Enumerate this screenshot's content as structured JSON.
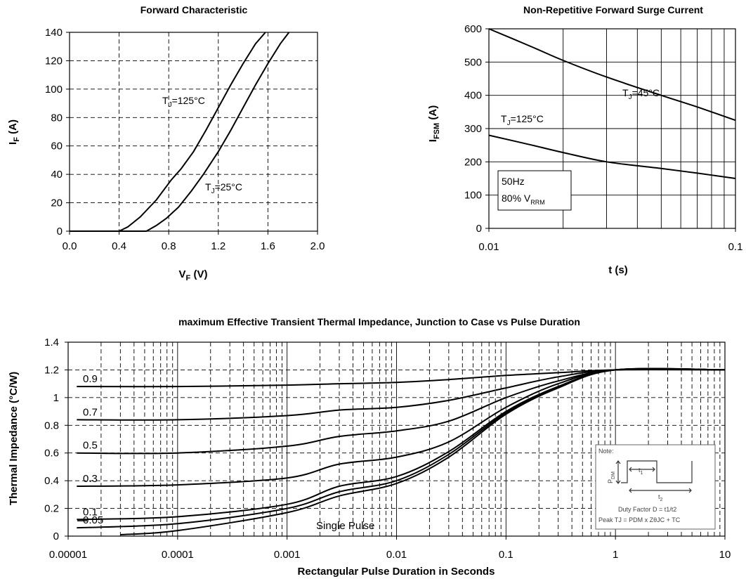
{
  "chart_data": [
    {
      "type": "line",
      "title": "Forward Characteristic",
      "xlabel": "V",
      "xlabel_sub": "F",
      "xlabel_unit": " (V)",
      "ylabel": "I",
      "ylabel_sub": "F",
      "ylabel_unit": " (A)",
      "xlim": [
        0,
        2.0
      ],
      "ylim": [
        0,
        140
      ],
      "xticks": [
        "0.0",
        "0.4",
        "0.8",
        "1.2",
        "1.6",
        "2.0"
      ],
      "yticks": [
        "0",
        "20",
        "40",
        "60",
        "80",
        "100",
        "120",
        "140"
      ],
      "grid": true,
      "series": [
        {
          "name_pre": "T",
          "name_sub": "J",
          "name_post": "=125°C",
          "x": [
            0.0,
            0.4,
            0.47,
            0.57,
            0.7,
            0.82,
            0.9,
            1.0,
            1.1,
            1.2,
            1.3,
            1.4,
            1.5,
            1.58
          ],
          "y": [
            0,
            0,
            3,
            10,
            22,
            36,
            44,
            56,
            71,
            87,
            103,
            118,
            132,
            140
          ]
        },
        {
          "name_pre": "T",
          "name_sub": "J",
          "name_post": "=25°C",
          "x": [
            0.0,
            0.62,
            0.7,
            0.78,
            0.88,
            0.98,
            1.08,
            1.2,
            1.3,
            1.4,
            1.5,
            1.6,
            1.7,
            1.77
          ],
          "y": [
            0,
            0,
            4,
            9,
            17,
            28,
            40,
            56,
            71,
            87,
            103,
            118,
            132,
            140
          ]
        }
      ]
    },
    {
      "type": "line",
      "title": "Non-Repetitive Forward Surge Current",
      "xlabel": "t (s)",
      "ylabel": "I",
      "ylabel_sub": "FSM",
      "ylabel_unit": " (A)",
      "xscale": "log",
      "xlim": [
        0.01,
        0.1
      ],
      "ylim": [
        0,
        600
      ],
      "xticks": [
        "0.01",
        "0.1"
      ],
      "yticks": [
        "0",
        "100",
        "200",
        "300",
        "400",
        "500",
        "600"
      ],
      "grid": true,
      "legend_box": {
        "line1": "50Hz",
        "line2_pre": "80% V",
        "line2_sub": "RRM"
      },
      "series": [
        {
          "name_pre": "T",
          "name_sub": "J",
          "name_post": "=45°C",
          "x": [
            0.01,
            0.015,
            0.02,
            0.03,
            0.05,
            0.07,
            0.1
          ],
          "y": [
            600,
            545,
            505,
            455,
            400,
            365,
            325
          ]
        },
        {
          "name_pre": "T",
          "name_sub": "J",
          "name_post": "=125°C",
          "x": [
            0.01,
            0.015,
            0.02,
            0.03,
            0.05,
            0.07,
            0.1
          ],
          "y": [
            280,
            250,
            228,
            200,
            180,
            166,
            150
          ]
        }
      ]
    },
    {
      "type": "line",
      "title": "maximum Effective Transient Thermal Impedance, Junction to Case vs Pulse Duration",
      "xlabel": "Rectangular Pulse Duration in Seconds",
      "ylabel": "Thermal Impedance (°C/W)",
      "xscale": "log",
      "xlim": [
        1e-05,
        10
      ],
      "ylim": [
        0,
        1.4
      ],
      "xticks": [
        "0.00001",
        "0.0001",
        "0.001",
        "0.01",
        "0.1",
        "1",
        "10"
      ],
      "yticks": [
        "0",
        "0.2",
        "0.4",
        "0.6",
        "0.8",
        "1",
        "1.2",
        "1.4"
      ],
      "grid": true,
      "series": [
        {
          "name": "0.9",
          "x": [
            1.2e-05,
            0.0001,
            0.001,
            0.003,
            0.01,
            0.03,
            0.1,
            0.3,
            1,
            10
          ],
          "y": [
            1.08,
            1.08,
            1.09,
            1.1,
            1.11,
            1.13,
            1.16,
            1.18,
            1.2,
            1.2
          ]
        },
        {
          "name": "0.7",
          "x": [
            1.2e-05,
            0.0001,
            0.001,
            0.003,
            0.01,
            0.03,
            0.1,
            0.3,
            1,
            10
          ],
          "y": [
            0.84,
            0.84,
            0.87,
            0.91,
            0.93,
            0.98,
            1.07,
            1.15,
            1.2,
            1.2
          ]
        },
        {
          "name": "0.5",
          "x": [
            1.2e-05,
            0.0001,
            0.001,
            0.003,
            0.01,
            0.03,
            0.1,
            0.3,
            1,
            10
          ],
          "y": [
            0.6,
            0.6,
            0.65,
            0.72,
            0.76,
            0.83,
            1.0,
            1.12,
            1.2,
            1.2
          ]
        },
        {
          "name": "0.3",
          "x": [
            1.2e-05,
            0.0001,
            0.001,
            0.003,
            0.01,
            0.03,
            0.1,
            0.3,
            1,
            10
          ],
          "y": [
            0.36,
            0.37,
            0.42,
            0.52,
            0.57,
            0.68,
            0.93,
            1.1,
            1.2,
            1.2
          ]
        },
        {
          "name": "0.1",
          "x": [
            1.2e-05,
            0.0001,
            0.001,
            0.003,
            0.01,
            0.03,
            0.1,
            0.3,
            1,
            10
          ],
          "y": [
            0.12,
            0.14,
            0.23,
            0.36,
            0.43,
            0.61,
            0.9,
            1.08,
            1.2,
            1.2
          ]
        },
        {
          "name": "0.05",
          "x": [
            1.2e-05,
            0.0001,
            0.001,
            0.003,
            0.01,
            0.03,
            0.1,
            0.3,
            1,
            10
          ],
          "y": [
            0.06,
            0.09,
            0.2,
            0.32,
            0.4,
            0.59,
            0.89,
            1.08,
            1.2,
            1.2
          ]
        },
        {
          "name": "Single Pulse",
          "x": [
            3e-05,
            0.0001,
            0.001,
            0.003,
            0.01,
            0.03,
            0.1,
            0.3,
            1,
            10
          ],
          "y": [
            0.01,
            0.04,
            0.17,
            0.29,
            0.38,
            0.57,
            0.88,
            1.07,
            1.2,
            1.2
          ]
        }
      ],
      "note": {
        "title": "Note:",
        "pdm_pre": "P",
        "pdm_sub": "DM",
        "t1_pre": "t",
        "t1_sub": "1",
        "t2_pre": "t",
        "t2_sub": "2",
        "duty": "Duty Factor  D = t1/t2",
        "peak": "Peak TJ = PDM x ZθJC + TC"
      }
    }
  ]
}
